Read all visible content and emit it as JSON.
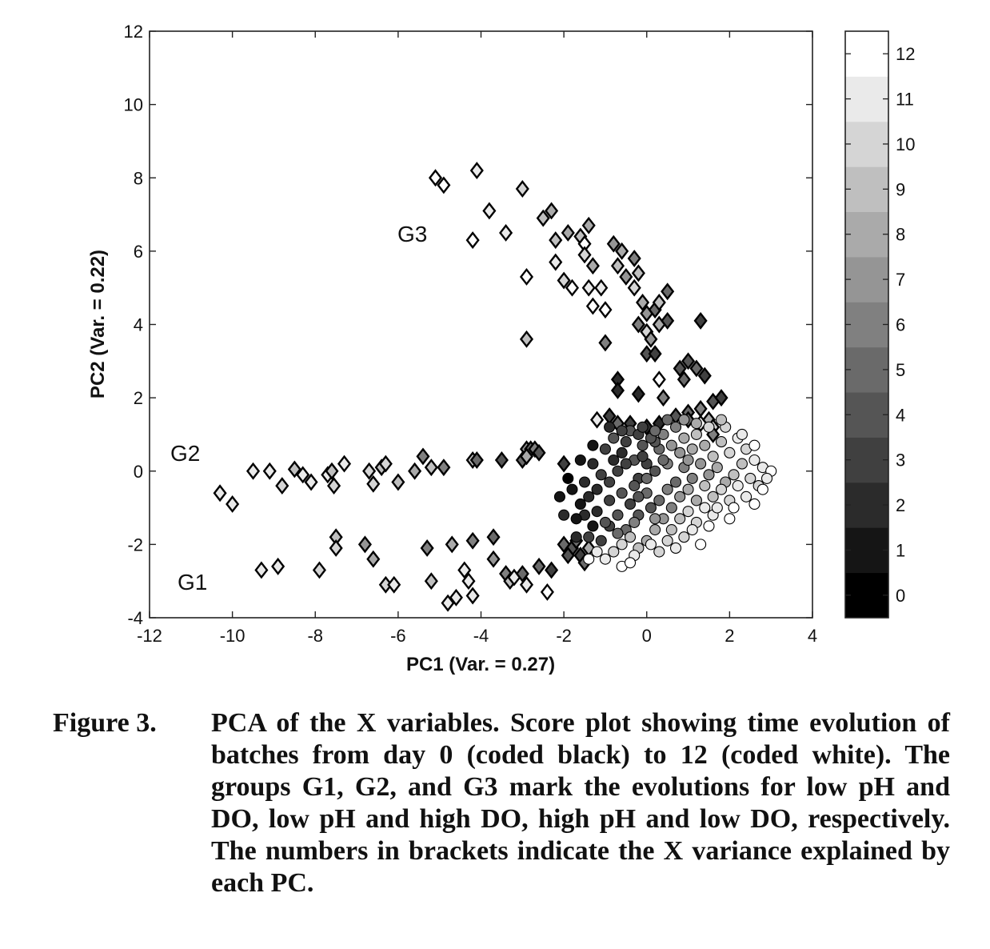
{
  "chart_data": {
    "type": "scatter",
    "xlabel": "PC1  (Var. = 0.27)",
    "ylabel": "PC2  (Var. = 0.22)",
    "xlim": [
      -12,
      4
    ],
    "ylim": [
      -4,
      12
    ],
    "xticks": [
      -12,
      -10,
      -8,
      -6,
      -4,
      -2,
      0,
      2,
      4
    ],
    "yticks": [
      -4,
      -2,
      0,
      2,
      4,
      6,
      8,
      10,
      12
    ],
    "grid": false,
    "marker_note_diamond": "diamond",
    "marker_note_circle": "circle",
    "colorbar": {
      "min": 0,
      "max": 12,
      "ticks": [
        0,
        1,
        2,
        3,
        4,
        5,
        6,
        7,
        8,
        9,
        10,
        11,
        12
      ],
      "colormap": "gray"
    },
    "annotations": [
      {
        "text": "G3",
        "x": -5.6,
        "y": 6.5
      },
      {
        "text": "G2",
        "x": -11.1,
        "y": 0.4
      },
      {
        "text": "G1",
        "x": -11.2,
        "y": -3.0
      }
    ],
    "diamond_points": [
      [
        -10.3,
        -0.6,
        11
      ],
      [
        -10.0,
        -0.9,
        11
      ],
      [
        -9.5,
        0.0,
        11
      ],
      [
        -9.1,
        0.0,
        11
      ],
      [
        -8.8,
        -0.4,
        10
      ],
      [
        -8.5,
        0.05,
        9
      ],
      [
        -8.3,
        -0.1,
        11
      ],
      [
        -8.1,
        -0.3,
        11
      ],
      [
        -7.7,
        -0.1,
        11
      ],
      [
        -7.55,
        -0.4,
        10
      ],
      [
        -7.3,
        0.2,
        11
      ],
      [
        -7.6,
        0.0,
        9
      ],
      [
        -6.7,
        0.0,
        10
      ],
      [
        -6.4,
        0.1,
        9
      ],
      [
        -6.3,
        0.2,
        10
      ],
      [
        -6.6,
        -0.35,
        10
      ],
      [
        -6.0,
        -0.3,
        9
      ],
      [
        -5.6,
        0.0,
        8
      ],
      [
        -5.4,
        0.4,
        6
      ],
      [
        -5.2,
        0.1,
        9
      ],
      [
        -4.9,
        0.1,
        6
      ],
      [
        -4.2,
        0.3,
        9
      ],
      [
        -4.1,
        0.3,
        5
      ],
      [
        -3.5,
        0.3,
        4
      ],
      [
        -3.0,
        0.3,
        5
      ],
      [
        -2.9,
        0.6,
        7
      ],
      [
        -2.8,
        0.6,
        5
      ],
      [
        -2.9,
        0.4,
        8
      ],
      [
        -2.7,
        0.6,
        6
      ],
      [
        -2.6,
        0.5,
        4
      ],
      [
        -2.0,
        0.2,
        3
      ],
      [
        -9.3,
        -2.7,
        11
      ],
      [
        -8.9,
        -2.6,
        11
      ],
      [
        -7.9,
        -2.7,
        10
      ],
      [
        -7.5,
        -1.8,
        9
      ],
      [
        -7.5,
        -2.1,
        10
      ],
      [
        -6.8,
        -2.0,
        7
      ],
      [
        -6.6,
        -2.4,
        8
      ],
      [
        -6.3,
        -3.1,
        10
      ],
      [
        -6.1,
        -3.1,
        11
      ],
      [
        -5.3,
        -2.1,
        6
      ],
      [
        -5.2,
        -3.0,
        9
      ],
      [
        -4.8,
        -3.6,
        11
      ],
      [
        -4.6,
        -3.45,
        11
      ],
      [
        -4.7,
        -2.0,
        8
      ],
      [
        -4.4,
        -2.7,
        11
      ],
      [
        -4.3,
        -3.0,
        11
      ],
      [
        -4.2,
        -3.4,
        11
      ],
      [
        -4.2,
        -1.9,
        6
      ],
      [
        -3.7,
        -1.8,
        5
      ],
      [
        -3.7,
        -2.4,
        7
      ],
      [
        -3.4,
        -2.8,
        6
      ],
      [
        -3.3,
        -3.0,
        9
      ],
      [
        -3.2,
        -2.9,
        11
      ],
      [
        -3.0,
        -2.8,
        5
      ],
      [
        -2.9,
        -3.1,
        11
      ],
      [
        -2.6,
        -2.6,
        5
      ],
      [
        -2.4,
        -3.3,
        12
      ],
      [
        -2.3,
        -2.7,
        3
      ],
      [
        -2.0,
        -2.0,
        5
      ],
      [
        -1.8,
        -2.1,
        4
      ],
      [
        -1.6,
        -2.3,
        3
      ],
      [
        -5.1,
        8.0,
        12
      ],
      [
        -4.9,
        7.8,
        12
      ],
      [
        -4.1,
        8.2,
        11
      ],
      [
        -3.8,
        7.1,
        11
      ],
      [
        -4.2,
        6.3,
        12
      ],
      [
        -3.4,
        6.5,
        11
      ],
      [
        -3.0,
        7.7,
        10
      ],
      [
        -2.9,
        5.3,
        12
      ],
      [
        -2.9,
        3.6,
        9
      ],
      [
        -2.5,
        6.9,
        9
      ],
      [
        -2.3,
        7.1,
        8
      ],
      [
        -2.2,
        6.3,
        9
      ],
      [
        -2.2,
        5.7,
        11
      ],
      [
        -1.9,
        6.5,
        8
      ],
      [
        -2.0,
        5.2,
        10
      ],
      [
        -1.8,
        5.0,
        12
      ],
      [
        -1.6,
        6.4,
        9
      ],
      [
        -1.5,
        6.2,
        12
      ],
      [
        -1.4,
        6.7,
        8
      ],
      [
        -1.5,
        5.9,
        10
      ],
      [
        -1.4,
        5.0,
        11
      ],
      [
        -1.3,
        5.6,
        8
      ],
      [
        -1.1,
        5.0,
        11
      ],
      [
        -1.3,
        4.5,
        12
      ],
      [
        -1.0,
        4.4,
        12
      ],
      [
        -1.0,
        3.5,
        6
      ],
      [
        -0.8,
        6.2,
        7
      ],
      [
        -0.6,
        6.0,
        8
      ],
      [
        -0.7,
        5.6,
        9
      ],
      [
        -0.5,
        5.3,
        7
      ],
      [
        -0.3,
        5.8,
        6
      ],
      [
        -0.2,
        5.4,
        9
      ],
      [
        -0.3,
        5.0,
        10
      ],
      [
        -0.1,
        4.6,
        8
      ],
      [
        0.0,
        4.3,
        7
      ],
      [
        0.2,
        4.4,
        5
      ],
      [
        0.3,
        4.6,
        9
      ],
      [
        0.5,
        4.9,
        5
      ],
      [
        0.3,
        4.0,
        8
      ],
      [
        0.5,
        4.1,
        4
      ],
      [
        0.0,
        3.8,
        10
      ],
      [
        0.1,
        3.6,
        7
      ],
      [
        0.0,
        3.2,
        4
      ],
      [
        0.2,
        3.2,
        3
      ],
      [
        -0.2,
        4.0,
        6
      ],
      [
        1.3,
        4.1,
        3
      ],
      [
        -0.7,
        2.5,
        2
      ],
      [
        -0.7,
        2.2,
        2
      ],
      [
        -0.2,
        2.1,
        2
      ],
      [
        0.3,
        2.5,
        12
      ],
      [
        0.4,
        2.0,
        6
      ],
      [
        0.8,
        2.8,
        4
      ],
      [
        0.9,
        2.5,
        5
      ],
      [
        1.0,
        3.0,
        4
      ],
      [
        1.2,
        2.8,
        5
      ],
      [
        1.4,
        2.6,
        3
      ],
      [
        1.0,
        1.6,
        5
      ],
      [
        1.3,
        1.7,
        6
      ],
      [
        1.5,
        1.4,
        8
      ],
      [
        1.6,
        1.9,
        4
      ],
      [
        1.3,
        1.3,
        12
      ],
      [
        1.6,
        1.2,
        10
      ],
      [
        1.8,
        2.0,
        3
      ],
      [
        -1.2,
        1.4,
        11
      ],
      [
        -0.9,
        1.5,
        3
      ],
      [
        -0.7,
        1.3,
        5
      ],
      [
        -0.4,
        1.3,
        3
      ],
      [
        0.0,
        1.2,
        2
      ],
      [
        0.3,
        1.3,
        2
      ],
      [
        0.7,
        1.5,
        4
      ],
      [
        1.0,
        1.4,
        5
      ],
      [
        1.6,
        1.0,
        6
      ],
      [
        -1.9,
        -2.3,
        4
      ],
      [
        -1.7,
        -1.9,
        5
      ],
      [
        -1.5,
        -2.5,
        5
      ],
      [
        -1.4,
        -2.1,
        8
      ]
    ],
    "circle_points": [
      [
        -2.0,
        -1.2,
        2
      ],
      [
        -1.7,
        -1.8,
        2
      ],
      [
        -1.5,
        -1.2,
        2
      ],
      [
        -1.3,
        -1.5,
        1
      ],
      [
        -1.1,
        -1.9,
        3
      ],
      [
        -0.9,
        -1.5,
        3
      ],
      [
        -1.6,
        -0.9,
        1
      ],
      [
        -1.4,
        -0.7,
        2
      ],
      [
        -1.2,
        -0.5,
        2
      ],
      [
        -0.9,
        -0.3,
        3
      ],
      [
        -0.7,
        0.0,
        3
      ],
      [
        -0.6,
        0.5,
        2
      ],
      [
        -0.5,
        0.8,
        3
      ],
      [
        -0.3,
        0.3,
        4
      ],
      [
        -0.2,
        -0.2,
        3
      ],
      [
        -0.1,
        0.7,
        4
      ],
      [
        0.0,
        0.2,
        3
      ],
      [
        0.2,
        0.0,
        4
      ],
      [
        0.3,
        0.6,
        5
      ],
      [
        0.5,
        0.2,
        6
      ],
      [
        -1.0,
        0.6,
        3
      ],
      [
        -0.8,
        0.9,
        4
      ],
      [
        -0.6,
        -0.6,
        4
      ],
      [
        -0.4,
        -0.9,
        3
      ],
      [
        -0.2,
        -1.2,
        4
      ],
      [
        0.0,
        -0.6,
        5
      ],
      [
        0.1,
        -1.0,
        4
      ],
      [
        -1.3,
        0.2,
        2
      ],
      [
        -1.1,
        -0.1,
        3
      ],
      [
        -0.9,
        -0.8,
        3
      ],
      [
        -0.7,
        -1.2,
        4
      ],
      [
        -0.5,
        -1.6,
        5
      ],
      [
        -0.3,
        -0.4,
        4
      ],
      [
        -0.1,
        0.4,
        3
      ],
      [
        0.0,
        -0.2,
        5
      ],
      [
        0.2,
        0.8,
        4
      ],
      [
        -1.8,
        -0.5,
        1
      ],
      [
        -1.5,
        -0.3,
        2
      ],
      [
        -0.4,
        1.1,
        4
      ],
      [
        -0.2,
        1.0,
        3
      ],
      [
        0.4,
        1.0,
        6
      ],
      [
        0.6,
        0.7,
        7
      ],
      [
        0.8,
        0.5,
        7
      ],
      [
        0.9,
        0.9,
        8
      ],
      [
        1.1,
        0.6,
        8
      ],
      [
        1.2,
        1.0,
        9
      ],
      [
        1.4,
        0.7,
        8
      ],
      [
        1.6,
        0.4,
        9
      ],
      [
        1.8,
        0.8,
        9
      ],
      [
        1.9,
        1.2,
        10
      ],
      [
        2.0,
        0.5,
        10
      ],
      [
        2.2,
        0.9,
        11
      ],
      [
        2.4,
        0.6,
        10
      ],
      [
        2.6,
        0.3,
        11
      ],
      [
        2.8,
        0.1,
        11
      ],
      [
        3.0,
        0.0,
        12
      ],
      [
        2.5,
        -0.2,
        10
      ],
      [
        2.7,
        -0.4,
        10
      ],
      [
        2.9,
        -0.2,
        11
      ],
      [
        2.3,
        0.2,
        9
      ],
      [
        2.1,
        -0.1,
        9
      ],
      [
        1.9,
        -0.3,
        8
      ],
      [
        1.7,
        0.1,
        8
      ],
      [
        1.5,
        -0.1,
        7
      ],
      [
        1.3,
        0.2,
        7
      ],
      [
        1.1,
        -0.2,
        6
      ],
      [
        0.9,
        0.1,
        6
      ],
      [
        0.7,
        -0.3,
        5
      ],
      [
        0.5,
        -0.5,
        6
      ],
      [
        0.3,
        -0.8,
        5
      ],
      [
        0.6,
        -1.0,
        6
      ],
      [
        0.8,
        -0.7,
        7
      ],
      [
        1.0,
        -0.5,
        8
      ],
      [
        1.2,
        -0.8,
        8
      ],
      [
        1.4,
        -0.4,
        9
      ],
      [
        1.6,
        -0.7,
        9
      ],
      [
        1.8,
        -0.5,
        10
      ],
      [
        2.0,
        -0.8,
        10
      ],
      [
        2.2,
        -0.4,
        11
      ],
      [
        2.4,
        -0.7,
        11
      ],
      [
        2.6,
        -0.9,
        12
      ],
      [
        2.8,
        -0.5,
        12
      ],
      [
        0.4,
        -1.3,
        7
      ],
      [
        0.2,
        -1.6,
        8
      ],
      [
        0.0,
        -1.9,
        8
      ],
      [
        -0.2,
        -2.1,
        9
      ],
      [
        -0.4,
        -1.8,
        9
      ],
      [
        -0.6,
        -2.0,
        10
      ],
      [
        -0.8,
        -2.2,
        10
      ],
      [
        -1.0,
        -2.4,
        11
      ],
      [
        -1.2,
        -2.2,
        11
      ],
      [
        -1.4,
        -2.4,
        12
      ],
      [
        0.6,
        -1.6,
        9
      ],
      [
        0.8,
        -1.3,
        9
      ],
      [
        1.0,
        -1.1,
        10
      ],
      [
        1.2,
        -1.4,
        10
      ],
      [
        1.4,
        -1.0,
        11
      ],
      [
        1.6,
        -1.2,
        11
      ],
      [
        0.3,
        -2.2,
        10
      ],
      [
        0.1,
        -2.0,
        11
      ],
      [
        -0.3,
        -2.3,
        11
      ],
      [
        -0.6,
        -2.6,
        12
      ],
      [
        -0.4,
        -2.5,
        12
      ],
      [
        0.5,
        -1.9,
        10
      ],
      [
        0.7,
        -2.1,
        11
      ],
      [
        1.3,
        -2.0,
        12
      ],
      [
        1.5,
        -1.5,
        12
      ],
      [
        2.1,
        -1.0,
        12
      ],
      [
        1.8,
        1.4,
        9
      ],
      [
        1.5,
        1.2,
        10
      ],
      [
        1.2,
        1.3,
        8
      ],
      [
        0.9,
        1.4,
        7
      ],
      [
        0.7,
        1.2,
        6
      ],
      [
        0.5,
        1.4,
        5
      ],
      [
        2.3,
        1.0,
        11
      ],
      [
        2.6,
        0.7,
        12
      ],
      [
        1.0,
        0.3,
        7
      ],
      [
        0.4,
        0.3,
        5
      ],
      [
        0.1,
        0.9,
        4
      ],
      [
        -0.2,
        -0.7,
        4
      ],
      [
        -0.5,
        0.2,
        3
      ],
      [
        -0.8,
        0.3,
        2
      ],
      [
        -1.2,
        -1.1,
        2
      ],
      [
        -1.4,
        -1.8,
        3
      ],
      [
        -1.0,
        -1.4,
        4
      ],
      [
        -0.7,
        -1.7,
        5
      ],
      [
        -0.3,
        -1.4,
        6
      ],
      [
        0.2,
        -1.3,
        7
      ],
      [
        0.9,
        -1.8,
        10
      ],
      [
        1.1,
        -1.6,
        11
      ],
      [
        1.7,
        -1.0,
        11
      ],
      [
        2.0,
        -1.3,
        12
      ],
      [
        -0.6,
        1.1,
        3
      ],
      [
        -0.9,
        1.2,
        2
      ],
      [
        -1.3,
        0.7,
        1
      ],
      [
        -1.6,
        0.3,
        1
      ],
      [
        -1.9,
        -0.2,
        0
      ],
      [
        -2.1,
        -0.7,
        1
      ],
      [
        -1.7,
        -1.3,
        1
      ],
      [
        -0.1,
        1.2,
        3
      ],
      [
        0.2,
        1.1,
        5
      ]
    ]
  },
  "caption": {
    "label": "Figure 3.",
    "text": "PCA of the X variables. Score plot showing time evolution of batches from day 0 (coded black) to 12 (coded white). The groups G1, G2, and G3 mark the evolutions for low pH and DO, low pH and high DO, high pH and low DO, respectively. The numbers in brackets indicate the X variance explained by each PC."
  }
}
